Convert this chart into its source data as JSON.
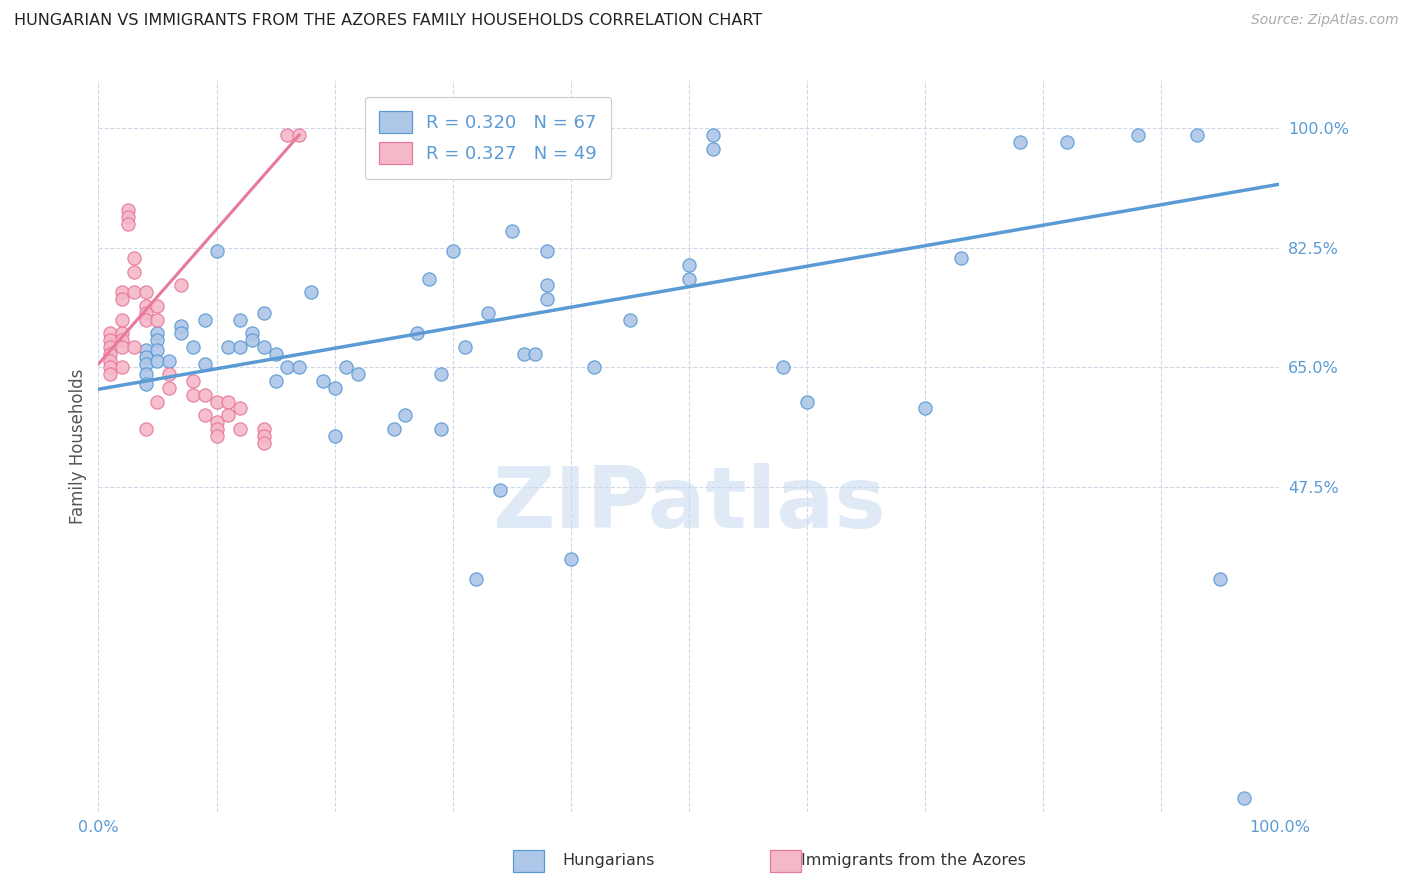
{
  "title": "HUNGARIAN VS IMMIGRANTS FROM THE AZORES FAMILY HOUSEHOLDS CORRELATION CHART",
  "source": "Source: ZipAtlas.com",
  "ylabel": "Family Households",
  "ytick_labels": [
    "100.0%",
    "82.5%",
    "65.0%",
    "47.5%"
  ],
  "ytick_values": [
    1.0,
    0.825,
    0.65,
    0.475
  ],
  "xlim": [
    0.0,
    1.0
  ],
  "ylim": [
    0.0,
    1.07
  ],
  "legend_entries": [
    {
      "label": "Hungarians",
      "color": "#aec6e8",
      "edge": "#5b9bd5",
      "R": "0.320",
      "N": "67"
    },
    {
      "label": "Immigrants from the Azores",
      "color": "#f4b8c8",
      "edge": "#e8799a",
      "R": "0.327",
      "N": "49"
    }
  ],
  "blue_line_x": [
    0.0,
    1.0
  ],
  "blue_line_y": [
    0.618,
    0.918
  ],
  "pink_line_x": [
    0.0,
    0.17
  ],
  "pink_line_y": [
    0.655,
    0.99
  ],
  "blue_scatter_x": [
    0.04,
    0.04,
    0.04,
    0.04,
    0.04,
    0.05,
    0.05,
    0.05,
    0.05,
    0.06,
    0.07,
    0.07,
    0.08,
    0.09,
    0.09,
    0.1,
    0.11,
    0.12,
    0.12,
    0.13,
    0.13,
    0.14,
    0.14,
    0.15,
    0.15,
    0.16,
    0.17,
    0.18,
    0.19,
    0.2,
    0.2,
    0.21,
    0.22,
    0.25,
    0.26,
    0.27,
    0.28,
    0.29,
    0.29,
    0.3,
    0.31,
    0.32,
    0.33,
    0.34,
    0.35,
    0.36,
    0.37,
    0.38,
    0.38,
    0.38,
    0.4,
    0.42,
    0.45,
    0.5,
    0.5,
    0.52,
    0.52,
    0.58,
    0.6,
    0.7,
    0.73,
    0.78,
    0.82,
    0.88,
    0.93,
    0.95,
    0.97
  ],
  "blue_scatter_y": [
    0.675,
    0.665,
    0.655,
    0.64,
    0.625,
    0.7,
    0.69,
    0.675,
    0.66,
    0.66,
    0.71,
    0.7,
    0.68,
    0.72,
    0.655,
    0.82,
    0.68,
    0.72,
    0.68,
    0.7,
    0.69,
    0.68,
    0.73,
    0.67,
    0.63,
    0.65,
    0.65,
    0.76,
    0.63,
    0.55,
    0.62,
    0.65,
    0.64,
    0.56,
    0.58,
    0.7,
    0.78,
    0.64,
    0.56,
    0.82,
    0.68,
    0.34,
    0.73,
    0.47,
    0.85,
    0.67,
    0.67,
    0.82,
    0.77,
    0.75,
    0.37,
    0.65,
    0.72,
    0.8,
    0.78,
    0.99,
    0.97,
    0.65,
    0.6,
    0.59,
    0.81,
    0.98,
    0.98,
    0.99,
    0.99,
    0.34,
    0.02
  ],
  "pink_scatter_x": [
    0.01,
    0.01,
    0.01,
    0.01,
    0.01,
    0.01,
    0.01,
    0.02,
    0.02,
    0.02,
    0.02,
    0.02,
    0.02,
    0.02,
    0.025,
    0.025,
    0.025,
    0.03,
    0.03,
    0.03,
    0.03,
    0.04,
    0.04,
    0.04,
    0.04,
    0.04,
    0.05,
    0.05,
    0.05,
    0.06,
    0.06,
    0.07,
    0.08,
    0.08,
    0.09,
    0.09,
    0.1,
    0.1,
    0.1,
    0.1,
    0.11,
    0.11,
    0.12,
    0.12,
    0.14,
    0.14,
    0.14,
    0.16,
    0.17
  ],
  "pink_scatter_y": [
    0.7,
    0.69,
    0.68,
    0.67,
    0.66,
    0.65,
    0.64,
    0.76,
    0.75,
    0.72,
    0.7,
    0.69,
    0.68,
    0.65,
    0.88,
    0.87,
    0.86,
    0.81,
    0.79,
    0.76,
    0.68,
    0.76,
    0.74,
    0.73,
    0.72,
    0.56,
    0.74,
    0.72,
    0.6,
    0.64,
    0.62,
    0.77,
    0.63,
    0.61,
    0.61,
    0.58,
    0.6,
    0.57,
    0.56,
    0.55,
    0.6,
    0.58,
    0.59,
    0.56,
    0.56,
    0.55,
    0.54,
    0.99,
    0.99
  ],
  "watermark": "ZIPatlas",
  "background_color": "#ffffff",
  "title_color": "#222222",
  "axis_tick_color": "#5b9bd5",
  "ylabel_color": "#555555",
  "scatter_blue_edge": "#5b9bd5",
  "scatter_blue_face": "#aec6e8",
  "scatter_pink_edge": "#e8799a",
  "scatter_pink_face": "#f4b8c8",
  "trend_blue_color": "#5b9bd5",
  "trend_pink_color": "#e8799a",
  "grid_color": "#d0d8e8",
  "watermark_color": "#c8d8f0"
}
